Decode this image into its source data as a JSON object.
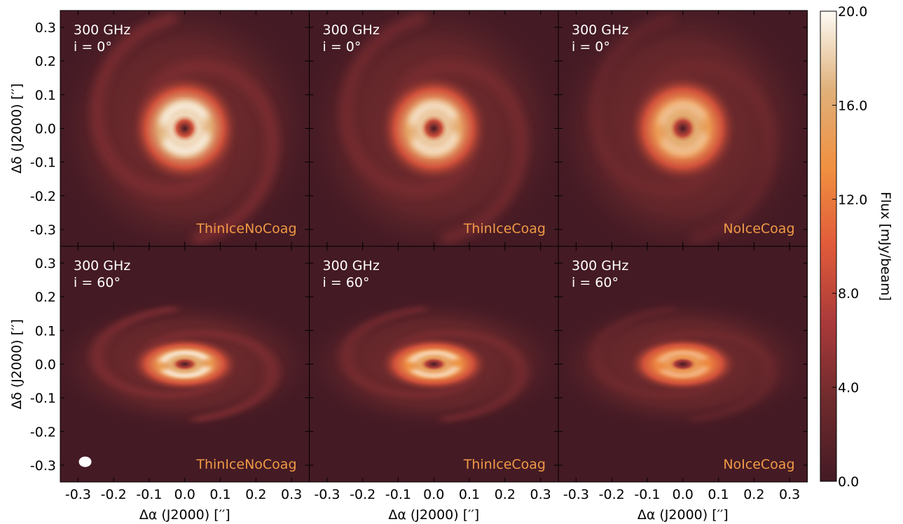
{
  "chart_data": {
    "type": "heatmap",
    "x_label": "Δα (J2000) [′′]",
    "y_label": "Δδ (J2000) [′′]",
    "xlim": [
      -0.35,
      0.35
    ],
    "ylim": [
      -0.35,
      0.35
    ],
    "x_ticks": [
      "-0.3",
      "-0.2",
      "-0.1",
      "0.0",
      "0.1",
      "0.2",
      "0.3"
    ],
    "y_ticks": [
      "0.3",
      "0.2",
      "0.1",
      "0.0",
      "-0.1",
      "-0.2",
      "-0.3"
    ],
    "colorbar": {
      "label": "Flux [mJy/beam]",
      "range": [
        0.0,
        20.0
      ],
      "ticks": [
        "20.0",
        "16.0",
        "12.0",
        "8.0",
        "4.0",
        "0.0"
      ],
      "colormap": [
        "#441a24",
        "#6d2a2c",
        "#a8393a",
        "#e05a3a",
        "#f09040",
        "#dfb07a",
        "#fdfbf4"
      ]
    },
    "model_label_color": "#f09a46",
    "panels": [
      {
        "frequency": "300 GHz",
        "inclination": "i = 0°",
        "model": "ThinIceNoCoag",
        "peak_flux": 20.0,
        "ring_contrast": 1.0
      },
      {
        "frequency": "300 GHz",
        "inclination": "i = 0°",
        "model": "ThinIceCoag",
        "peak_flux": 19.0,
        "ring_contrast": 0.8
      },
      {
        "frequency": "300 GHz",
        "inclination": "i = 0°",
        "model": "NoIceCoag",
        "peak_flux": 17.5,
        "ring_contrast": 0.45
      },
      {
        "frequency": "300 GHz",
        "inclination": "i = 60°",
        "model": "ThinIceNoCoag",
        "peak_flux": 17.5,
        "ring_contrast": 1.0
      },
      {
        "frequency": "300 GHz",
        "inclination": "i = 60°",
        "model": "ThinIceCoag",
        "peak_flux": 16.5,
        "ring_contrast": 0.8
      },
      {
        "frequency": "300 GHz",
        "inclination": "i = 60°",
        "model": "NoIceCoag",
        "peak_flux": 15.5,
        "ring_contrast": 0.45
      }
    ]
  }
}
